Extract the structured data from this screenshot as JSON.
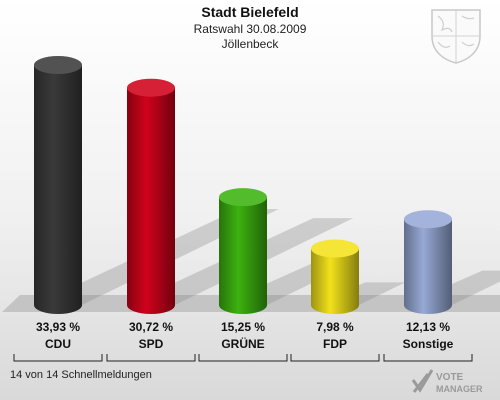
{
  "header": {
    "title": "Stadt Bielefeld",
    "subtitle": "Ratswahl 30.08.2009",
    "district": "Jöllenbeck"
  },
  "footer": {
    "status": "14 von 14 Schnellmeldungen",
    "logo_text": "VOTE MANAGER"
  },
  "chart_data": {
    "type": "bar",
    "title": "Stadt Bielefeld",
    "categories": [
      "CDU",
      "SPD",
      "GRÜNE",
      "FDP",
      "Sonstige"
    ],
    "values": [
      33.93,
      30.72,
      15.25,
      7.98,
      12.13
    ],
    "value_labels": [
      "33,93 %",
      "30,72 %",
      "15,25 %",
      "7,98 %",
      "12,13 %"
    ],
    "colors": [
      "#3a3a3a",
      "#d0021b",
      "#3cb30f",
      "#f2e21b",
      "#97a9d6"
    ],
    "ylim": [
      0,
      33.93
    ],
    "grid": false,
    "legend": "none"
  }
}
